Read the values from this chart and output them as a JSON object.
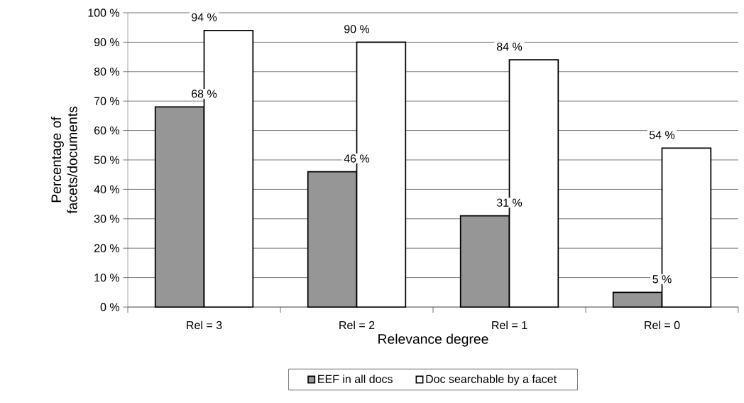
{
  "chart_data": {
    "type": "bar",
    "xlabel": "Relevance degree",
    "ylabel": "Percentage of facets/documents",
    "categories": [
      "Rel = 3",
      "Rel = 2",
      "Rel = 1",
      "Rel = 0"
    ],
    "series": [
      {
        "name": "EEF in all docs",
        "color": "#969696",
        "values": [
          68,
          46,
          31,
          5
        ],
        "value_labels": [
          "68 %",
          "46 %",
          "31 %",
          "5 %"
        ]
      },
      {
        "name": "Doc searchable by a facet",
        "color": "#ffffff",
        "values": [
          94,
          90,
          84,
          54
        ],
        "value_labels": [
          "94 %",
          "90 %",
          "84 %",
          "54 %"
        ]
      }
    ],
    "ylim": [
      0,
      100
    ],
    "yticks": [
      {
        "value": 0,
        "label": "0 %"
      },
      {
        "value": 10,
        "label": "10 %"
      },
      {
        "value": 20,
        "label": "20 %"
      },
      {
        "value": 30,
        "label": "30 %"
      },
      {
        "value": 40,
        "label": "40 %"
      },
      {
        "value": 50,
        "label": "50 %"
      },
      {
        "value": 60,
        "label": "60 %"
      },
      {
        "value": 70,
        "label": "70 %"
      },
      {
        "value": 80,
        "label": "80 %"
      },
      {
        "value": 90,
        "label": "90 %"
      },
      {
        "value": 100,
        "label": "100 %"
      }
    ],
    "grid": "y",
    "legend": "bottom"
  }
}
